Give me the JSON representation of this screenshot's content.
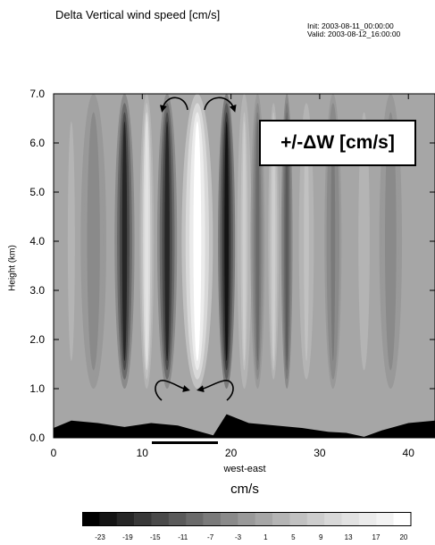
{
  "header": {
    "title": "Delta Vertical wind speed [cm/s]",
    "init": "Init: 2003-08-11_00:00:00",
    "valid": "Valid: 2003-08-12_16:00:00"
  },
  "annotation": "+/-ΔW [cm/s]",
  "chart_data": {
    "type": "heatmap",
    "title": "Delta Vertical wind speed [cm/s]",
    "xlabel": "west-east",
    "ylabel": "Height (km)",
    "units": "cm/s",
    "xlim": [
      0,
      43
    ],
    "ylim": [
      0,
      7
    ],
    "xticks": [
      "0",
      "10",
      "20",
      "30",
      "40"
    ],
    "yticks": [
      "0.0",
      "1.0",
      "2.0",
      "3.0",
      "4.0",
      "5.0",
      "6.0",
      "7.0"
    ],
    "colorbar": {
      "min": -25,
      "max": 22,
      "tick_labels": [
        "-23",
        "-19",
        "-15",
        "-11",
        "-7",
        "-3",
        "1",
        "5",
        "9",
        "13",
        "17",
        "20"
      ],
      "colors": [
        "#000000",
        "#141414",
        "#262626",
        "#383838",
        "#4a4a4a",
        "#5a5a5a",
        "#6a6a6a",
        "#7a7a7a",
        "#8a8a8a",
        "#999999",
        "#a6a6a6",
        "#b4b4b4",
        "#c1c1c1",
        "#cdcdcd",
        "#d8d8d8",
        "#e2e2e2",
        "#ebebeb",
        "#f3f3f3",
        "#ffffff"
      ]
    },
    "features": [
      {
        "x": 8.0,
        "w": 0.7,
        "v": -20
      },
      {
        "x": 10.5,
        "w": 0.5,
        "v": 15
      },
      {
        "x": 12.8,
        "w": 0.7,
        "v": -20
      },
      {
        "x": 16.2,
        "w": 1.1,
        "v": 21
      },
      {
        "x": 19.5,
        "w": 0.6,
        "v": -22
      },
      {
        "x": 21.5,
        "w": 0.5,
        "v": 10
      },
      {
        "x": 23.0,
        "w": 0.5,
        "v": -9
      },
      {
        "x": 24.8,
        "w": 0.5,
        "v": 9
      },
      {
        "x": 26.3,
        "w": 0.4,
        "v": -13
      },
      {
        "x": 28.5,
        "w": 0.7,
        "v": 6
      },
      {
        "x": 31.5,
        "w": 0.6,
        "v": -6
      },
      {
        "x": 35.0,
        "w": 0.8,
        "v": 4
      },
      {
        "x": 38.0,
        "w": 0.8,
        "v": -5
      },
      {
        "x": 2.0,
        "w": 1.0,
        "v": 3
      },
      {
        "x": 4.5,
        "w": 0.9,
        "v": -4
      }
    ],
    "terrain": [
      [
        0,
        0.2
      ],
      [
        2,
        0.35
      ],
      [
        5,
        0.3
      ],
      [
        8,
        0.22
      ],
      [
        11,
        0.3
      ],
      [
        14,
        0.25
      ],
      [
        16,
        0.15
      ],
      [
        18,
        0.05
      ],
      [
        19.5,
        0.48
      ],
      [
        22,
        0.3
      ],
      [
        25,
        0.25
      ],
      [
        28,
        0.2
      ],
      [
        31,
        0.12
      ],
      [
        33,
        0.1
      ],
      [
        35,
        0.02
      ],
      [
        37,
        0.15
      ],
      [
        40,
        0.3
      ],
      [
        43,
        0.35
      ]
    ]
  }
}
